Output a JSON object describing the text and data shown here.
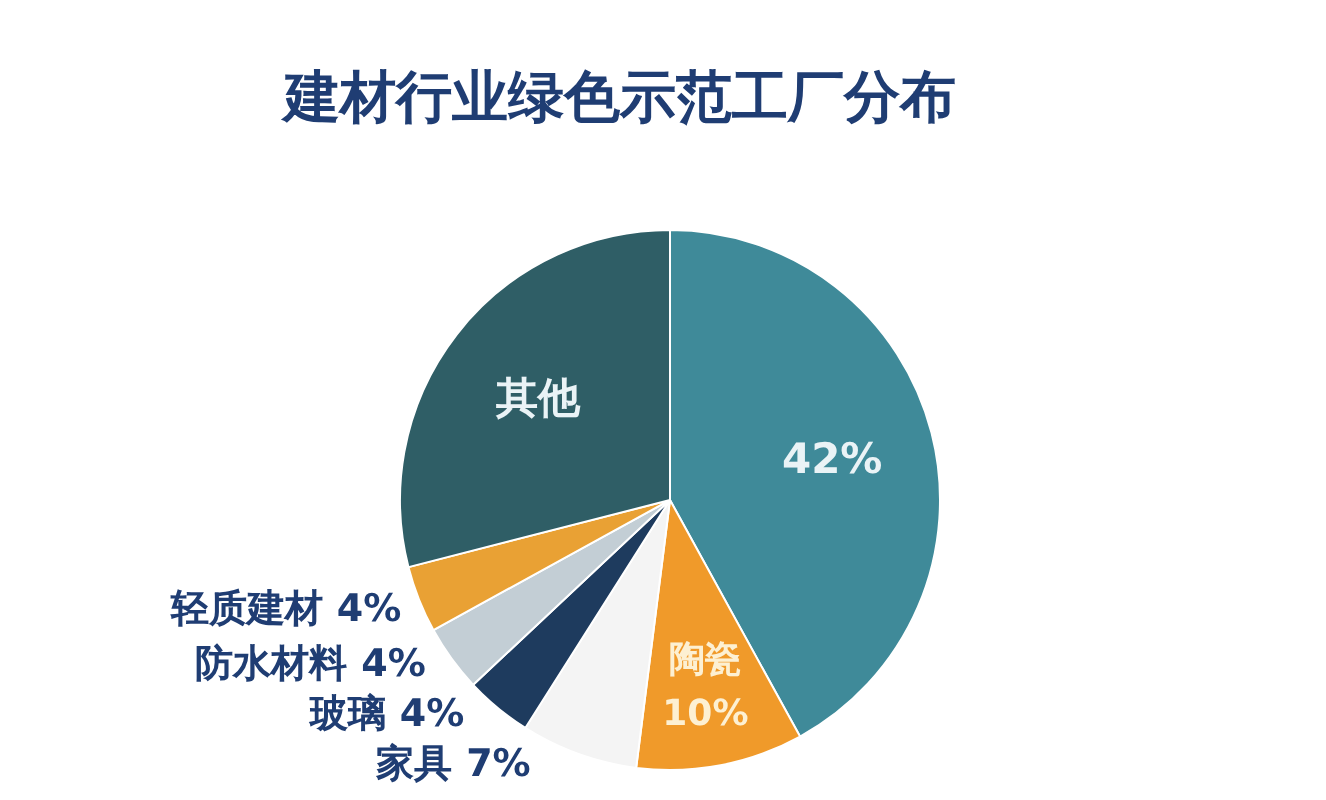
{
  "chart_data": {
    "type": "pie",
    "title": "建材行业绿色示范工厂分布",
    "categories": [
      null,
      "陶瓷",
      "家具",
      "玻璃",
      "防水材料",
      "轻质建材",
      "其他"
    ],
    "values": [
      42,
      10,
      7,
      4,
      4,
      4,
      29
    ],
    "colors": [
      "#3f8a99",
      "#f09a2a",
      "#f4f4f4",
      "#1e3b5e",
      "#c3ced5",
      "#e9a134",
      "#2f5e66"
    ],
    "value_labels": [
      "42%",
      "10%",
      "7%",
      "4%",
      "4%",
      "4%",
      null
    ]
  }
}
